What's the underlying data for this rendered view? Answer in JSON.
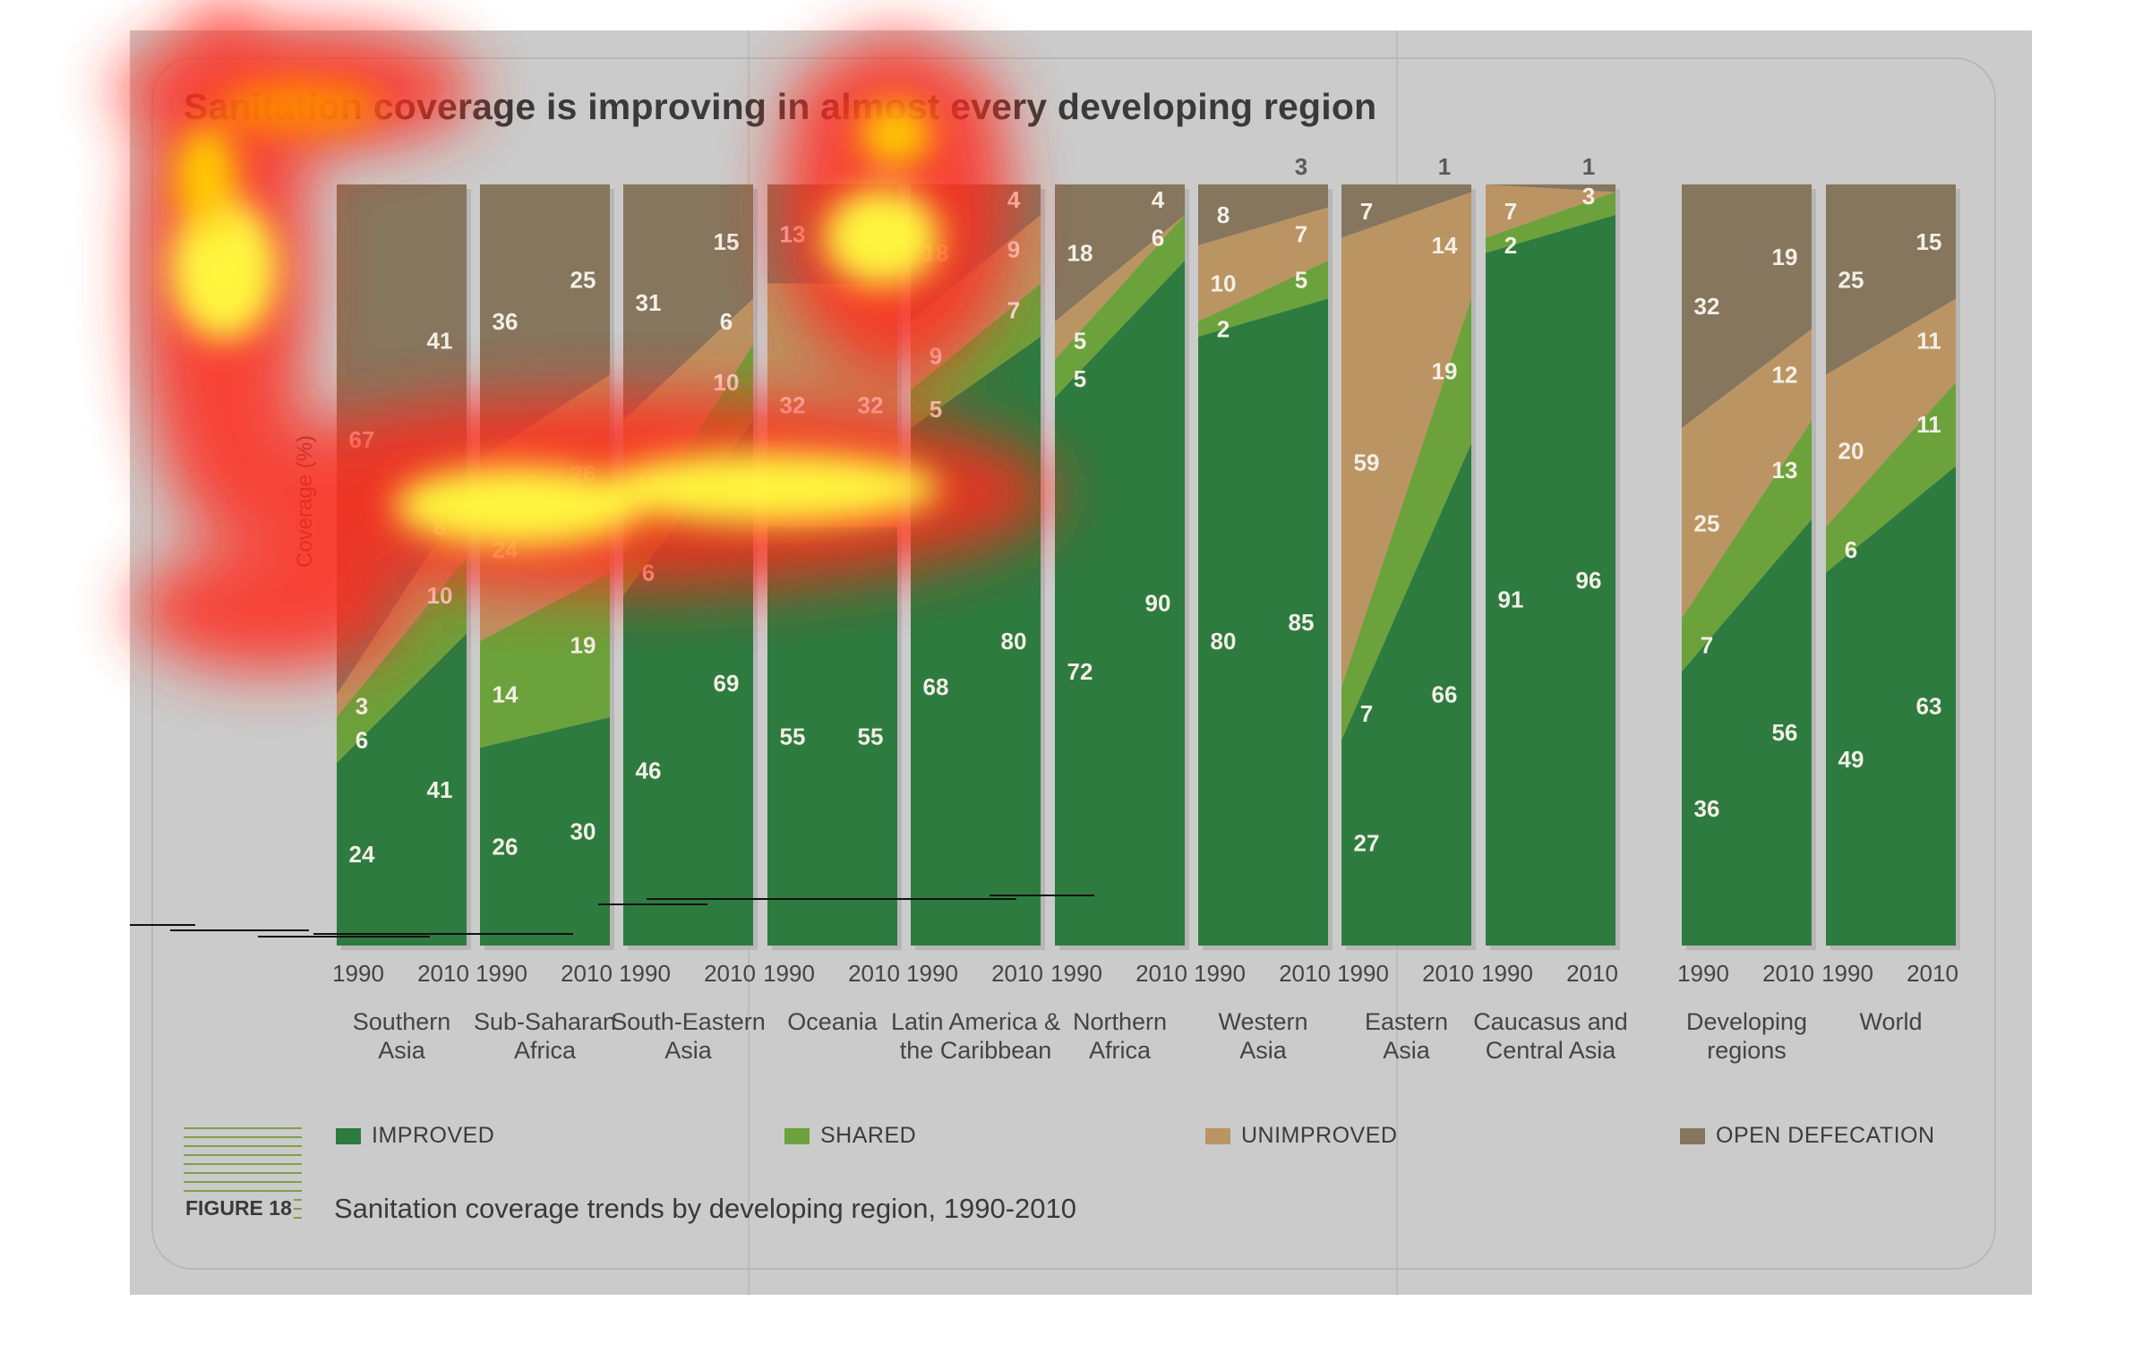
{
  "title": "Sanitation coverage is improving in almost every developing region",
  "figure": {
    "label": "FIGURE 18",
    "caption": "Sanitation coverage trends by developing region, 1990-2010"
  },
  "legend": [
    {
      "label": "IMPROVED",
      "color": "#2e7b40"
    },
    {
      "label": "SHARED",
      "color": "#6ca23b"
    },
    {
      "label": "UNIMPROVED",
      "color": "#bb9463"
    },
    {
      "label": "OPEN DEFECATION",
      "color": "#86765e"
    }
  ],
  "chart_data": {
    "type": "area",
    "ylabel": "Coverage (%)",
    "ylim": [
      0,
      100
    ],
    "x": [
      "1990",
      "2010"
    ],
    "series_names": [
      "Improved",
      "Shared",
      "Unimproved",
      "Open defecation"
    ],
    "regions": [
      {
        "name": "Southern Asia",
        "improved": [
          24,
          41
        ],
        "shared": [
          6,
          10
        ],
        "unimproved": [
          3,
          8
        ],
        "open": [
          67,
          41
        ]
      },
      {
        "name": "Sub-Saharan Africa",
        "improved": [
          26,
          30
        ],
        "shared": [
          14,
          19
        ],
        "unimproved": [
          24,
          26
        ],
        "open": [
          36,
          25
        ]
      },
      {
        "name": "South-Eastern Asia",
        "improved": [
          46,
          69
        ],
        "shared": [
          6,
          10
        ],
        "unimproved": [
          17,
          6
        ],
        "open": [
          31,
          15
        ]
      },
      {
        "name": "Oceania",
        "improved": [
          55,
          55
        ],
        "shared": [
          0,
          0
        ],
        "unimproved": [
          32,
          32
        ],
        "open": [
          13,
          13
        ]
      },
      {
        "name": "Latin America & the Caribbean",
        "improved": [
          68,
          80
        ],
        "shared": [
          5,
          7
        ],
        "unimproved": [
          9,
          9
        ],
        "open": [
          18,
          4
        ]
      },
      {
        "name": "Northern Africa",
        "improved": [
          72,
          90
        ],
        "shared": [
          5,
          6
        ],
        "unimproved": [
          5,
          0
        ],
        "open": [
          18,
          4
        ]
      },
      {
        "name": "Western Asia",
        "improved": [
          80,
          85
        ],
        "shared": [
          2,
          5
        ],
        "unimproved": [
          10,
          7
        ],
        "open": [
          8,
          3
        ]
      },
      {
        "name": "Eastern Asia",
        "improved": [
          27,
          66
        ],
        "shared": [
          7,
          19
        ],
        "unimproved": [
          59,
          14
        ],
        "open": [
          7,
          1
        ]
      },
      {
        "name": "Caucasus and Central Asia",
        "improved": [
          91,
          96
        ],
        "shared": [
          2,
          3
        ],
        "unimproved": [
          7,
          0
        ],
        "open": [
          0,
          1
        ]
      },
      {
        "name": "Developing regions",
        "improved": [
          36,
          56
        ],
        "shared": [
          7,
          13
        ],
        "unimproved": [
          25,
          12
        ],
        "open": [
          32,
          19
        ]
      },
      {
        "name": "World",
        "improved": [
          49,
          63
        ],
        "shared": [
          6,
          11
        ],
        "unimproved": [
          20,
          11
        ],
        "open": [
          25,
          15
        ]
      }
    ],
    "group_labels": [
      [
        "Southern",
        "Asia"
      ],
      [
        "Sub-Saharan",
        "Africa"
      ],
      [
        "South-Eastern",
        "Asia"
      ],
      [
        "Oceania"
      ],
      [
        "Latin America &",
        "the Caribbean"
      ],
      [
        "Northern",
        "Africa"
      ],
      [
        "Western",
        "Asia"
      ],
      [
        "Eastern",
        "Asia"
      ],
      [
        "Caucasus and",
        "Central Asia"
      ],
      [
        "Developing",
        "regions"
      ],
      [
        "World"
      ]
    ],
    "value_labels": [
      [
        [
          "24",
          "41"
        ],
        [
          "6",
          "10"
        ],
        [
          "3",
          "8"
        ],
        [
          "67",
          "41"
        ]
      ],
      [
        [
          "26",
          "30"
        ],
        [
          "14",
          "19"
        ],
        [
          "24",
          "26"
        ],
        [
          "36",
          "25"
        ]
      ],
      [
        [
          "46",
          "69"
        ],
        [
          "6",
          "10"
        ],
        [
          "17",
          "6"
        ],
        [
          "31",
          "15"
        ]
      ],
      [
        [
          "55",
          "55"
        ],
        [
          "",
          ""
        ],
        [
          "32",
          "32"
        ],
        [
          "13",
          "13"
        ]
      ],
      [
        [
          "68",
          "80"
        ],
        [
          "5",
          "7"
        ],
        [
          "9",
          "9"
        ],
        [
          "18",
          "4"
        ]
      ],
      [
        [
          "72",
          "90"
        ],
        [
          "5",
          "6"
        ],
        [
          "5",
          ""
        ],
        [
          "18",
          "4"
        ]
      ],
      [
        [
          "80",
          "85"
        ],
        [
          "2",
          "5"
        ],
        [
          "10",
          "7"
        ],
        [
          "8",
          "3"
        ]
      ],
      [
        [
          "27",
          "66"
        ],
        [
          "7",
          "19"
        ],
        [
          "59",
          "14"
        ],
        [
          "7",
          "1"
        ]
      ],
      [
        [
          "91",
          "96"
        ],
        [
          "2",
          "3"
        ],
        [
          "7",
          ""
        ],
        [
          "",
          "1"
        ]
      ],
      [
        [
          "36",
          "56"
        ],
        [
          "7",
          "13"
        ],
        [
          "25",
          "12"
        ],
        [
          "32",
          "19"
        ]
      ],
      [
        [
          "49",
          "63"
        ],
        [
          "6",
          "11"
        ],
        [
          "20",
          "11"
        ],
        [
          "25",
          "15"
        ]
      ]
    ],
    "grid": false,
    "legend_position": "bottom"
  }
}
